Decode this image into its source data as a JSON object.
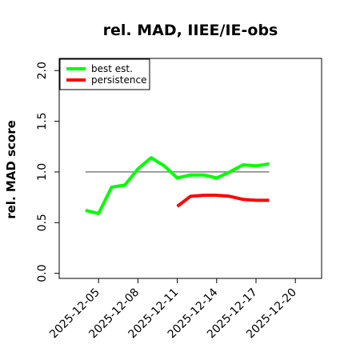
{
  "chart_data": {
    "type": "line",
    "title": "rel. MAD, IIEE/IE-obs",
    "xlabel": "",
    "ylabel": "rel. MAD score",
    "x_tick_labels": [
      "2025-12-05",
      "2025-12-08",
      "2025-12-11",
      "2025-12-14",
      "2025-12-17",
      "2025-12-20"
    ],
    "y_tick_labels": [
      "0.0",
      "0.5",
      "1.0",
      "1.5",
      "2.0"
    ],
    "xlim": [
      "2025-12-02",
      "2025-12-22"
    ],
    "ylim": [
      -0.05,
      2.12
    ],
    "grid": false,
    "legend_position": "top-left",
    "reference_line": {
      "y": 1.0,
      "x_start": "2025-12-04",
      "x_end": "2025-12-18",
      "color": "#808080"
    },
    "series": [
      {
        "name": "best est.",
        "color": "#00ff00",
        "x": [
          "2025-12-04",
          "2025-12-05",
          "2025-12-06",
          "2025-12-07",
          "2025-12-08",
          "2025-12-09",
          "2025-12-10",
          "2025-12-11",
          "2025-12-12",
          "2025-12-13",
          "2025-12-14",
          "2025-12-15",
          "2025-12-16",
          "2025-12-17",
          "2025-12-18"
        ],
        "values": [
          0.62,
          0.59,
          0.85,
          0.87,
          1.03,
          1.14,
          1.06,
          0.94,
          0.97,
          0.97,
          0.94,
          1.0,
          1.07,
          1.06,
          1.08
        ]
      },
      {
        "name": "persistence",
        "color": "#ff0000",
        "x": [
          "2025-12-11",
          "2025-12-12",
          "2025-12-13",
          "2025-12-14",
          "2025-12-15",
          "2025-12-16",
          "2025-12-17",
          "2025-12-18"
        ],
        "values": [
          0.66,
          0.76,
          0.77,
          0.77,
          0.76,
          0.73,
          0.72,
          0.72
        ]
      }
    ]
  }
}
